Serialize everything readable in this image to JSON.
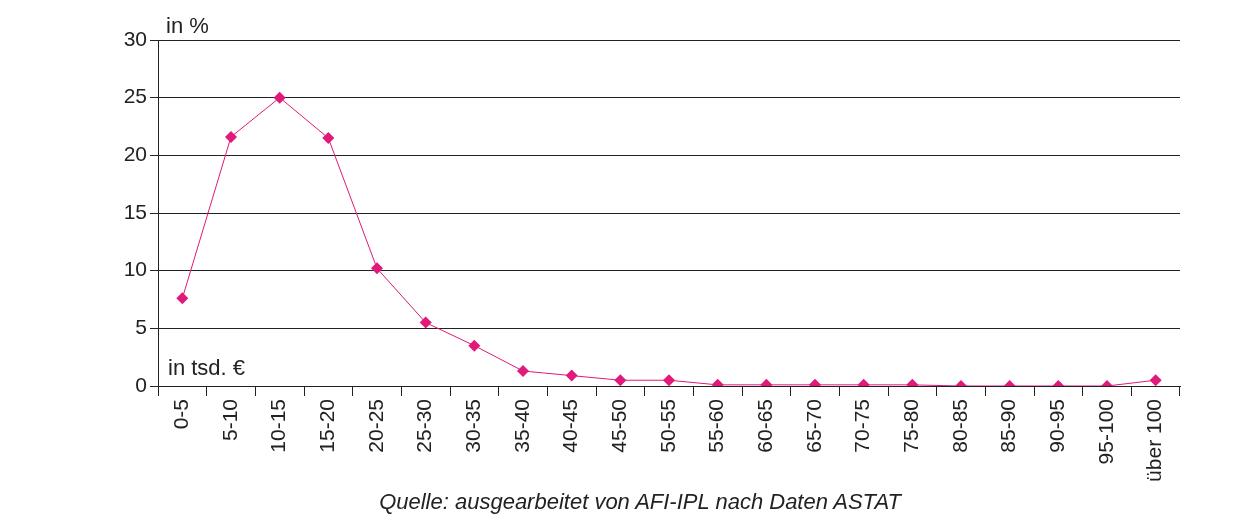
{
  "chart_data": {
    "type": "line",
    "xlabel": "in tsd. €",
    "ylabel": "in %",
    "annotations": [
      "Quelle: ausgearbeitet von AFI-IPL nach Daten ASTAT"
    ],
    "categories": [
      "0-5",
      "5-10",
      "10-15",
      "15-20",
      "20-25",
      "25-30",
      "30-35",
      "35-40",
      "40-45",
      "45-50",
      "50-55",
      "55-60",
      "60-65",
      "65-70",
      "70-75",
      "75-80",
      "80-85",
      "85-90",
      "90-95",
      "95-100",
      "über 100"
    ],
    "values": [
      7.6,
      21.6,
      25,
      21.5,
      10.2,
      5.5,
      3.5,
      1.3,
      0.9,
      0.5,
      0.5,
      0.1,
      0.1,
      0.1,
      0.1,
      0.1,
      0,
      0,
      0,
      0,
      0.5
    ],
    "color": "#e0197a",
    "ylim": [
      0,
      30
    ],
    "yticks": [
      0,
      5,
      10,
      15,
      20,
      25,
      30
    ],
    "grid": "y",
    "legend": false,
    "marker": "diamond",
    "line_style": "solid"
  }
}
